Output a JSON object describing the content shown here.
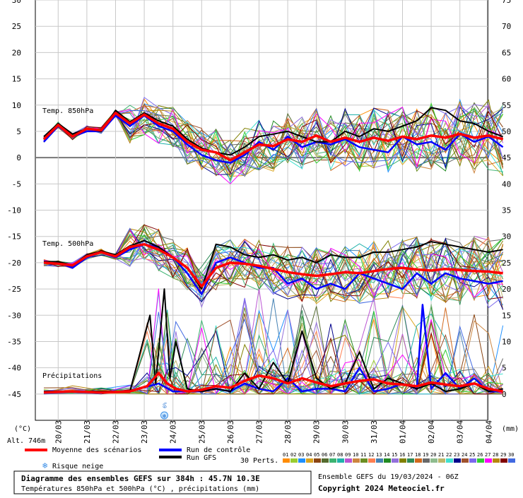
{
  "chart_data": {
    "type": "line",
    "title": "Diagramme des ensembles GEFS sur 384h : 45.7N 10.3E",
    "subtitle": "Températures 850hPa et 500hPa (°C) , précipitations (mm)",
    "run_info": "Ensemble GEFS du 19/03/2024 - 06Z",
    "copyright": "Copyright 2024 Meteociel.fr",
    "left_unit": "(°C)",
    "right_unit": "(mm)",
    "altitude": "Alt. 746m",
    "left_axis": {
      "ticks": [
        "30",
        "25",
        "20",
        "15",
        "10",
        "5",
        "0",
        "-5",
        "-10",
        "-15",
        "-20",
        "-25",
        "-30",
        "-35",
        "-40",
        "-45"
      ],
      "ylim": [
        -50,
        30
      ]
    },
    "right_axis": {
      "ticks": [
        "75",
        "70",
        "65",
        "60",
        "55",
        "50",
        "45",
        "40",
        "35",
        "30",
        "25",
        "20",
        "15",
        "10",
        "5",
        "0"
      ],
      "ylim": [
        -5,
        75
      ]
    },
    "x_ticks": [
      "20/03",
      "21/03",
      "22/03",
      "23/03",
      "24/03",
      "25/03",
      "26/03",
      "27/03",
      "28/03",
      "29/03",
      "30/03",
      "31/03",
      "01/04",
      "02/04",
      "03/04",
      "04/04"
    ],
    "section_labels": {
      "t850": "Temp. 850hPa",
      "t500": "Temp. 500hPa",
      "precip": "Précipitations"
    },
    "snow_marker": {
      "x": "24/03",
      "label": "6%"
    },
    "legend": {
      "mean": "Moyenne des scénarios",
      "control": "Run de contrôle",
      "gfs": "Run GFS",
      "snow": "Risque neige",
      "perts": "30 Perts.",
      "colors": {
        "mean": "#ff0000",
        "control": "#0000ff",
        "gfs": "#000000"
      }
    },
    "perturbations": {
      "labels": [
        "01",
        "02",
        "03",
        "04",
        "05",
        "06",
        "07",
        "08",
        "09",
        "10",
        "11",
        "12",
        "13",
        "14",
        "15",
        "16",
        "17",
        "18",
        "19",
        "20",
        "21",
        "22",
        "23",
        "24",
        "25",
        "26",
        "27",
        "28",
        "29",
        "30"
      ],
      "colors": [
        "#ff8c00",
        "#9acd32",
        "#1e90ff",
        "#daa520",
        "#8b4513",
        "#556b2f",
        "#3cb371",
        "#20b2aa",
        "#ba55d3",
        "#cd853f",
        "#6b8e23",
        "#ff7f50",
        "#4682b4",
        "#228b22",
        "#9370db",
        "#808000",
        "#2e8b57",
        "#d2691e",
        "#696969",
        "#8fbc8f",
        "#bdb76b",
        "#40e0d0",
        "#00008b",
        "#a0522d",
        "#7b68ee",
        "#32cd32",
        "#ff00ff",
        "#b8860b",
        "#800000",
        "#4169e1"
      ]
    },
    "series": [
      {
        "name": "Moyenne des scénarios",
        "group": "850hPa",
        "x": [
          0,
          0.5,
          1,
          1.5,
          2,
          2.5,
          3,
          3.5,
          4,
          4.5,
          5,
          5.5,
          6,
          6.5,
          7,
          7.5,
          8,
          8.5,
          9,
          9.5,
          10,
          10.5,
          11,
          11.5,
          12,
          12.5,
          13,
          13.5,
          14,
          14.5,
          15,
          15.5,
          16
        ],
        "y": [
          3.5,
          6.2,
          4,
          5.5,
          5.2,
          8.5,
          6.5,
          8.2,
          6.5,
          5.5,
          3,
          1.5,
          1,
          -0.5,
          1,
          2.5,
          2.2,
          3.5,
          3,
          4.2,
          3,
          3.8,
          3,
          3.8,
          3.2,
          4,
          3.5,
          4.2,
          3.8,
          4.5,
          3.8,
          4.2,
          3.5
        ]
      },
      {
        "name": "Run de contrôle",
        "group": "850hPa",
        "x": [
          0,
          0.5,
          1,
          1.5,
          2,
          2.5,
          3,
          3.5,
          4,
          4.5,
          5,
          5.5,
          6,
          6.5,
          7,
          7.5,
          8,
          8.5,
          9,
          9.5,
          10,
          10.5,
          11,
          11.5,
          12,
          12.5,
          13,
          13.5,
          14,
          14.5,
          15,
          15.5,
          16
        ],
        "y": [
          3,
          6,
          4,
          5,
          5,
          8,
          6,
          8,
          6,
          5,
          2.5,
          0.5,
          -0.5,
          -1,
          0.5,
          3,
          1.5,
          4,
          2,
          3,
          2.5,
          3.5,
          2,
          1.5,
          1,
          4,
          2.5,
          3,
          1.5,
          4.5,
          3,
          4,
          2
        ]
      },
      {
        "name": "Run GFS",
        "group": "850hPa",
        "x": [
          0,
          0.5,
          1,
          1.5,
          2,
          2.5,
          3,
          3.5,
          4,
          4.5,
          5,
          5.5,
          6,
          6.5,
          7,
          7.5,
          8,
          8.5,
          9,
          9.5,
          10,
          10.5,
          11,
          11.5,
          12,
          12.5,
          13,
          13.5,
          14,
          14.5,
          15,
          15.5,
          16
        ],
        "y": [
          4,
          6.5,
          4.5,
          5.5,
          5,
          9,
          6.8,
          8.5,
          7,
          6,
          3.5,
          1.8,
          1,
          0.5,
          2,
          4,
          4.5,
          5,
          4,
          3,
          3,
          5,
          4,
          5.5,
          5,
          6,
          7,
          9.5,
          9,
          7,
          6.5,
          5,
          4
        ]
      },
      {
        "name": "Moyenne des scénarios",
        "group": "500hPa",
        "x": [
          0,
          0.5,
          1,
          1.5,
          2,
          2.5,
          3,
          3.5,
          4,
          4.5,
          5,
          5.5,
          6,
          6.5,
          7,
          7.5,
          8,
          8.5,
          9,
          9.5,
          10,
          10.5,
          11,
          11.5,
          12,
          12.5,
          13,
          13.5,
          14,
          14.5,
          15,
          15.5,
          16
        ],
        "y": [
          -20,
          -20.2,
          -20.5,
          -18.8,
          -18,
          -18.8,
          -17,
          -16.5,
          -17.5,
          -19,
          -21,
          -24.5,
          -21,
          -20,
          -20.2,
          -20.6,
          -21.2,
          -21.8,
          -22.2,
          -22.5,
          -22.2,
          -21.8,
          -22,
          -21.6,
          -21.2,
          -21,
          -21.3,
          -21.5,
          -21.2,
          -21.4,
          -21.6,
          -21.7,
          -22
        ]
      },
      {
        "name": "Run de contrôle",
        "group": "500hPa",
        "x": [
          0,
          0.5,
          1,
          1.5,
          2,
          2.5,
          3,
          3.5,
          4,
          4.5,
          5,
          5.5,
          6,
          6.5,
          7,
          7.5,
          8,
          8.5,
          9,
          9.5,
          10,
          10.5,
          11,
          11.5,
          12,
          12.5,
          13,
          13.5,
          14,
          14.5,
          15,
          15.5,
          16
        ],
        "y": [
          -20,
          -20,
          -21,
          -19,
          -18,
          -19,
          -17.5,
          -16.5,
          -17,
          -19,
          -22,
          -26,
          -20,
          -19,
          -20,
          -21,
          -21,
          -24,
          -23,
          -25,
          -24,
          -25,
          -22,
          -23,
          -24,
          -25,
          -22,
          -24,
          -22,
          -23,
          -23.5,
          -24,
          -23.5
        ]
      },
      {
        "name": "Run GFS",
        "group": "500hPa",
        "x": [
          0,
          0.5,
          1,
          1.5,
          2,
          2.5,
          3,
          3.5,
          4,
          4.5,
          5,
          5.5,
          6,
          6.5,
          7,
          7.5,
          8,
          8.5,
          9,
          9.5,
          10,
          10.5,
          11,
          11.5,
          12,
          12.5,
          13,
          13.5,
          14,
          14.5,
          15,
          15.5,
          16
        ],
        "y": [
          -19.8,
          -19.8,
          -20.5,
          -18.5,
          -17.8,
          -18.5,
          -16.8,
          -15.8,
          -17,
          -19,
          -21,
          -25,
          -16.5,
          -17,
          -18.5,
          -19,
          -18.5,
          -19.5,
          -19,
          -20,
          -18.5,
          -19,
          -19,
          -18,
          -18,
          -17.5,
          -17,
          -16,
          -16.5,
          -17,
          -17.5,
          -18,
          -17.5
        ]
      },
      {
        "name": "Moyenne des scénarios",
        "group": "precip",
        "x": [
          0,
          1,
          2,
          3,
          3.6,
          4,
          4.3,
          4.6,
          5,
          5.5,
          6,
          6.5,
          7,
          7.5,
          8,
          8.5,
          9,
          9.5,
          10,
          10.5,
          11,
          11.5,
          12,
          12.5,
          13,
          13.5,
          14,
          14.5,
          15,
          15.5,
          16
        ],
        "y": [
          0.3,
          0.5,
          0.3,
          0.5,
          1.5,
          4,
          2,
          1,
          0.5,
          0.8,
          1.5,
          1.2,
          2.5,
          3.5,
          3,
          2,
          3,
          2.2,
          1.5,
          2,
          2.5,
          2.8,
          2,
          1.8,
          1.5,
          2.2,
          1.8,
          1.5,
          2,
          1,
          0.5
        ]
      },
      {
        "name": "Run de contrôle",
        "group": "precip",
        "x": [
          0,
          1,
          2,
          3,
          4,
          4.5,
          5,
          5.5,
          6,
          6.5,
          7,
          7.5,
          8,
          8.5,
          9,
          9.5,
          10,
          10.5,
          11,
          11.5,
          12,
          12.5,
          13,
          13.2,
          13.5,
          14,
          14.5,
          15,
          15.5,
          16
        ],
        "y": [
          0.5,
          0.5,
          0.3,
          0.5,
          2,
          0.5,
          0.5,
          0.5,
          1,
          0.5,
          2,
          1,
          0.5,
          3,
          0.5,
          1,
          1,
          0.5,
          5,
          0.5,
          1,
          2,
          1,
          17,
          1,
          4,
          1,
          3,
          0.5,
          0.5
        ]
      },
      {
        "name": "Run GFS",
        "group": "precip",
        "x": [
          0,
          1,
          2,
          3,
          3.7,
          3.9,
          4.2,
          4.4,
          4.6,
          5,
          5.5,
          6,
          6.5,
          7,
          7.5,
          8,
          8.5,
          9,
          9.5,
          10,
          10.5,
          11,
          11.5,
          12,
          12.5,
          13,
          13.5,
          14,
          14.5,
          15,
          15.5,
          16
        ],
        "y": [
          0.5,
          0.5,
          0.5,
          0.5,
          15,
          2,
          20,
          3,
          10,
          1,
          0.5,
          1,
          0.5,
          4,
          1,
          6,
          2,
          12,
          3,
          1,
          2,
          8,
          1,
          3,
          2,
          1,
          2,
          0.5,
          1,
          2,
          0.5,
          1
        ]
      }
    ]
  }
}
